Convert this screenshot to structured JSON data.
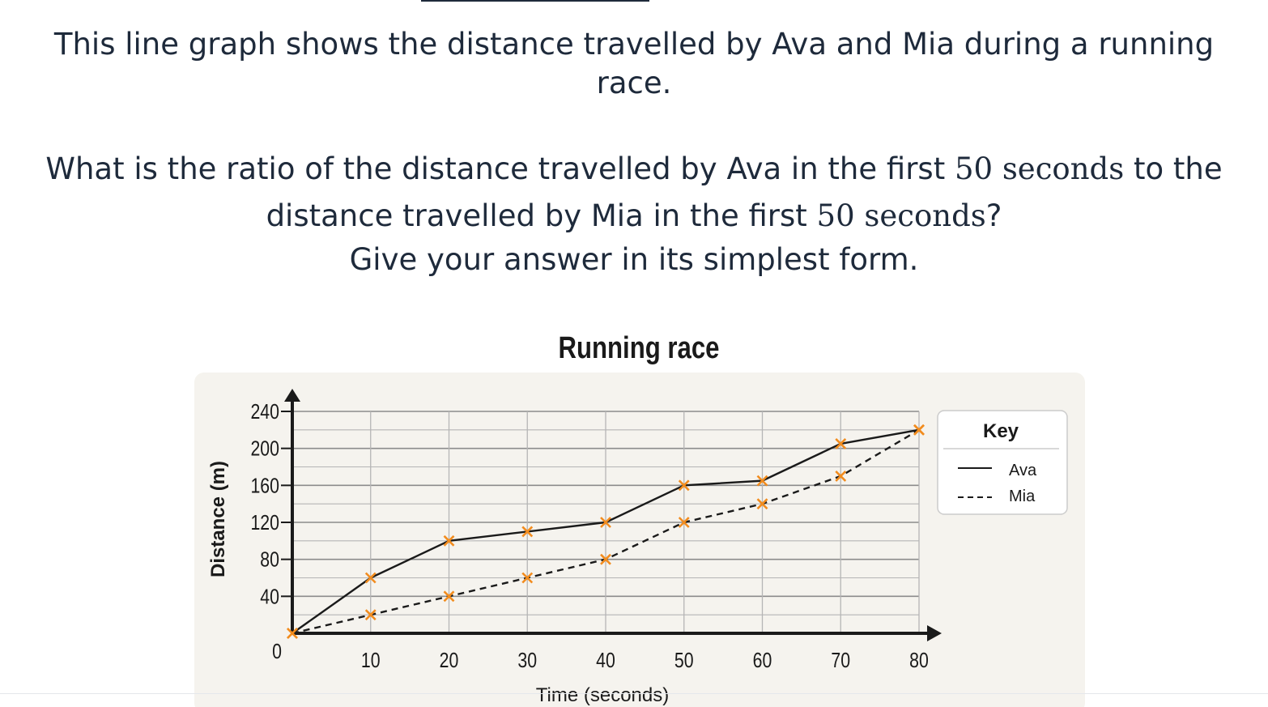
{
  "question": {
    "line1": "This line graph shows the distance travelled by Ava and Mia during a running",
    "line1b": "race.",
    "line2_prefix": "What is the ratio of the distance travelled by Ava in the first ",
    "line2_num": "50",
    "line2_unit": " seconds",
    "line2_suffix": " to the",
    "line3_prefix": "distance travelled by Mia in the first ",
    "line3_num": "50",
    "line3_unit": " seconds",
    "line3_suffix": "?",
    "line4": "Give your answer in its simplest form."
  },
  "colors": {
    "panel": "#f5f3ee",
    "grid": "#9a9a9a",
    "line": "#1a1a1a",
    "marker": "#f28c1e",
    "text": "#1e2a3b"
  },
  "chart_data": {
    "type": "line",
    "title": "Running race",
    "xlabel": "Time (seconds)",
    "ylabel": "Distance (m)",
    "x": [
      0,
      10,
      20,
      30,
      40,
      50,
      60,
      70,
      80
    ],
    "xticks": [
      10,
      20,
      30,
      40,
      50,
      60,
      70,
      80
    ],
    "yticks": [
      40,
      80,
      120,
      160,
      200,
      240
    ],
    "origin_label": "0",
    "xlim": [
      0,
      80
    ],
    "ylim": [
      0,
      240
    ],
    "grid": true,
    "legend_title": "Key",
    "legend_position": "right",
    "series": [
      {
        "name": "Ava",
        "style": "solid",
        "values": [
          0,
          60,
          100,
          110,
          120,
          160,
          165,
          205,
          220
        ]
      },
      {
        "name": "Mia",
        "style": "dashed",
        "values": [
          0,
          20,
          40,
          60,
          80,
          120,
          140,
          170,
          220
        ]
      }
    ]
  }
}
